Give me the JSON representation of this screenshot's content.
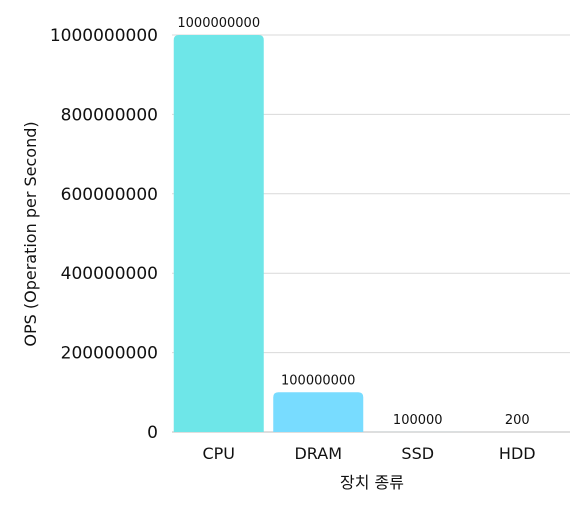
{
  "chart_data": {
    "type": "bar",
    "title": "",
    "xlabel": "장치 종류",
    "ylabel": "OPS (Operation per Second)",
    "categories": [
      "CPU",
      "DRAM",
      "SSD",
      "HDD"
    ],
    "values": [
      1000000000,
      100000000,
      100000,
      200
    ],
    "data_labels": [
      "1000000000",
      "100000000",
      "100000",
      "200"
    ],
    "y_ticks": [
      "0",
      "200000000",
      "400000000",
      "600000000",
      "800000000",
      "1000000000"
    ],
    "ylim": [
      0,
      1000000000
    ],
    "grid": true,
    "legend": "none",
    "colors": {
      "CPU": "#6ee6e8",
      "DRAM": "#78dcff",
      "SSD": "#78dcff",
      "HDD": "#78dcff"
    }
  }
}
